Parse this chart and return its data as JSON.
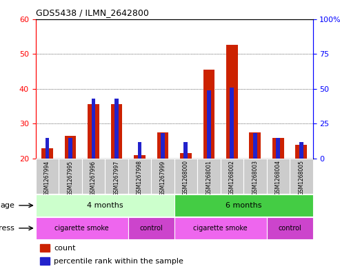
{
  "title": "GDS5438 / ILMN_2642800",
  "samples": [
    "GSM1267994",
    "GSM1267995",
    "GSM1267996",
    "GSM1267997",
    "GSM1267998",
    "GSM1267999",
    "GSM1268000",
    "GSM1268001",
    "GSM1268002",
    "GSM1268003",
    "GSM1268004",
    "GSM1268005"
  ],
  "counts": [
    23,
    26.5,
    35.5,
    35.5,
    21,
    27.5,
    21.5,
    45.5,
    52.5,
    27.5,
    26,
    24
  ],
  "percentiles": [
    15,
    15,
    43,
    43,
    12,
    18,
    12,
    49,
    51,
    18,
    15,
    12
  ],
  "ylim_left": [
    20,
    60
  ],
  "ylim_right": [
    0,
    100
  ],
  "yticks_left": [
    20,
    30,
    40,
    50,
    60
  ],
  "yticks_right": [
    0,
    25,
    50,
    75,
    100
  ],
  "ytick_labels_right": [
    "0",
    "25",
    "50",
    "75",
    "100%"
  ],
  "bar_color_red": "#cc2200",
  "bar_color_blue": "#2222cc",
  "age_groups": [
    {
      "label": "4 months",
      "start": 0,
      "end": 6,
      "color": "#ccffcc"
    },
    {
      "label": "6 months",
      "start": 6,
      "end": 12,
      "color": "#44cc44"
    }
  ],
  "stress_groups": [
    {
      "label": "cigarette smoke",
      "start": 0,
      "end": 4,
      "color": "#ee66ee"
    },
    {
      "label": "control",
      "start": 4,
      "end": 6,
      "color": "#cc44cc"
    },
    {
      "label": "cigarette smoke",
      "start": 6,
      "end": 10,
      "color": "#ee66ee"
    },
    {
      "label": "control",
      "start": 10,
      "end": 12,
      "color": "#cc44cc"
    }
  ],
  "legend_count_color": "#cc2200",
  "legend_percentile_color": "#2222cc",
  "background_color": "#ffffff",
  "plot_bg_color": "#ffffff",
  "sample_label_bg": "#cccccc"
}
